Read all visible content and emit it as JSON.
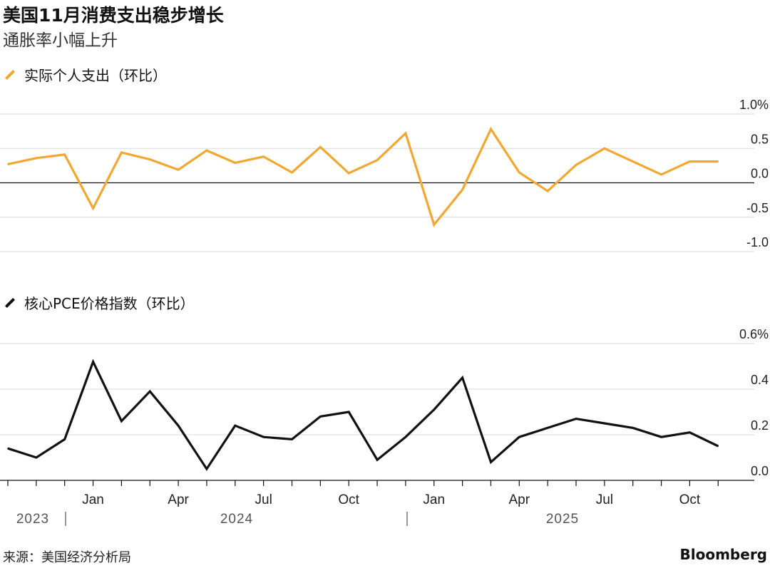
{
  "title": "美国11月消费支出稳步增长",
  "subtitle": "通胀率小幅上升",
  "source": "来源：美国经济分析局",
  "brand": "Bloomberg",
  "colors": {
    "spending": "#f0a832",
    "core_pce": "#111111",
    "grid": "#d9d9d9",
    "zero": "#111111"
  },
  "chart_data": [
    {
      "type": "line",
      "legend": "实际个人支出（环比）",
      "x": [
        "2023-10",
        "2023-11",
        "2023-12",
        "2024-01",
        "2024-02",
        "2024-03",
        "2024-04",
        "2024-05",
        "2024-06",
        "2024-07",
        "2024-08",
        "2024-09",
        "2024-10",
        "2024-11",
        "2024-12",
        "2025-01",
        "2025-02",
        "2025-03",
        "2025-04",
        "2025-05",
        "2025-06",
        "2025-07",
        "2025-08",
        "2025-09",
        "2025-10",
        "2025-11"
      ],
      "series": [
        {
          "values": [
            0.27,
            0.36,
            0.41,
            -0.37,
            0.44,
            0.34,
            0.19,
            0.47,
            0.29,
            0.38,
            0.15,
            0.52,
            0.14,
            0.33,
            0.72,
            -0.61,
            -0.1,
            0.78,
            0.15,
            -0.12,
            0.26,
            0.5,
            0.31,
            0.12,
            0.31,
            0.31
          ]
        }
      ],
      "yticks": [
        "1.0%",
        "0.5",
        "0.0",
        "-0.5",
        "-1.0"
      ],
      "ylim": [
        -1.0,
        1.0
      ]
    },
    {
      "type": "line",
      "legend": "核心PCE价格指数（环比）",
      "x": [
        "2023-10",
        "2023-11",
        "2023-12",
        "2024-01",
        "2024-02",
        "2024-03",
        "2024-04",
        "2024-05",
        "2024-06",
        "2024-07",
        "2024-08",
        "2024-09",
        "2024-10",
        "2024-11",
        "2024-12",
        "2025-01",
        "2025-02",
        "2025-03",
        "2025-04",
        "2025-05",
        "2025-06",
        "2025-07",
        "2025-08",
        "2025-09",
        "2025-10",
        "2025-11"
      ],
      "series": [
        {
          "values": [
            0.14,
            0.1,
            0.18,
            0.52,
            0.26,
            0.39,
            0.24,
            0.05,
            0.24,
            0.19,
            0.18,
            0.28,
            0.3,
            0.09,
            0.19,
            0.31,
            0.45,
            0.08,
            0.19,
            0.23,
            0.27,
            0.25,
            0.23,
            0.19,
            0.21,
            0.15
          ]
        }
      ],
      "yticks": [
        "0.6%",
        "0.4",
        "0.2",
        "0.0"
      ],
      "ylim": [
        0.0,
        0.6
      ]
    }
  ],
  "x_axis": {
    "month_labels": [
      "Jan",
      "Apr",
      "Jul",
      "Oct",
      "Jan",
      "Apr",
      "Jul",
      "Oct"
    ],
    "year_labels": [
      "2023",
      "2024",
      "2025"
    ]
  }
}
